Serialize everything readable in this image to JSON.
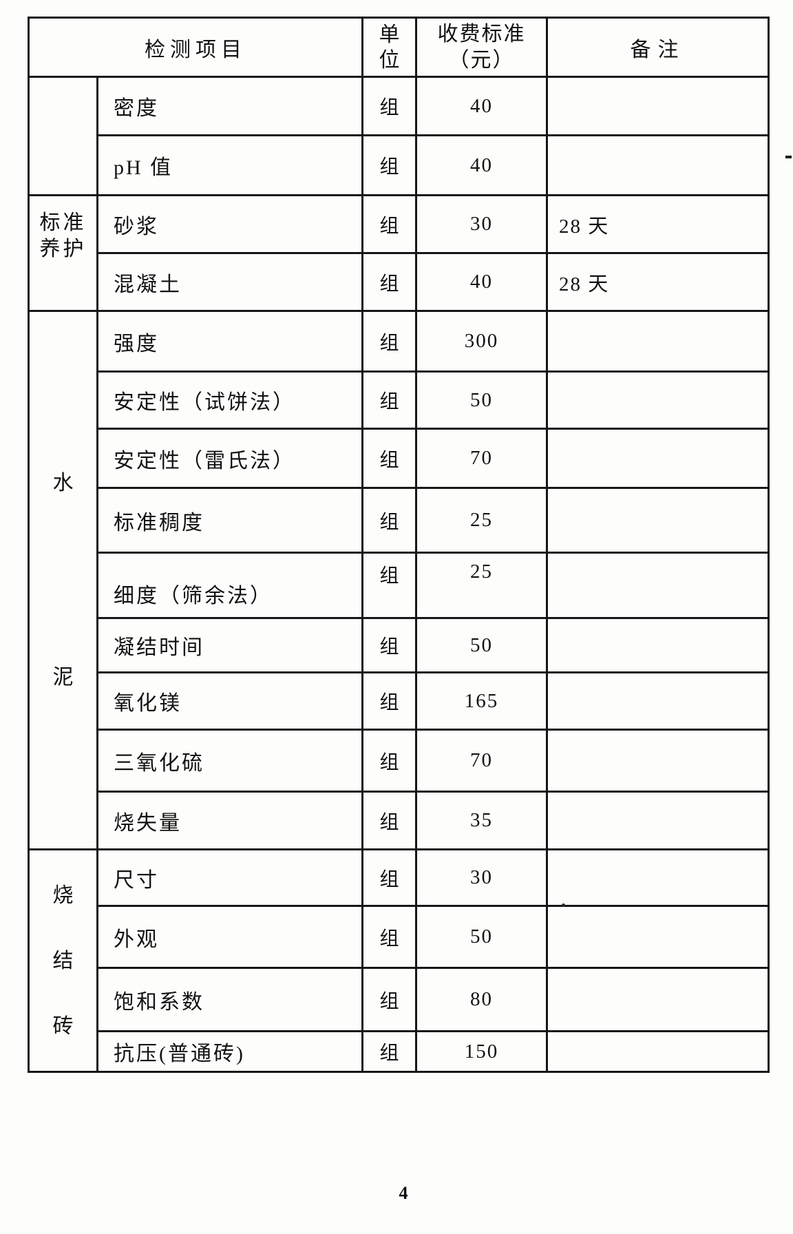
{
  "page": {
    "number": "4"
  },
  "table": {
    "header": {
      "item": "检测项目",
      "unit": "单\n位",
      "fee": "收费标准\n（元）",
      "remark": "备注"
    },
    "groups": [
      {
        "label": "",
        "rows": 2
      },
      {
        "label": "标准\n养护",
        "rows": 2
      },
      {
        "label": "水\n泥",
        "rows": 9
      },
      {
        "label": "烧\n结\n砖",
        "rows": 4
      }
    ],
    "rows": [
      {
        "item": "密度",
        "unit": "组",
        "fee": "40",
        "remark": ""
      },
      {
        "item": "pH 值",
        "unit": "组",
        "fee": "40",
        "remark": ""
      },
      {
        "item": "砂浆",
        "unit": "组",
        "fee": "30",
        "remark": "28 天"
      },
      {
        "item": "混凝土",
        "unit": "组",
        "fee": "40",
        "remark": "28 天"
      },
      {
        "item": "强度",
        "unit": "组",
        "fee": "300",
        "remark": ""
      },
      {
        "item": "安定性（试饼法）",
        "unit": "组",
        "fee": "50",
        "remark": ""
      },
      {
        "item": "安定性（雷氏法）",
        "unit": "组",
        "fee": "70",
        "remark": ""
      },
      {
        "item": "标准稠度",
        "unit": "组",
        "fee": "25",
        "remark": ""
      },
      {
        "item": "细度（筛余法）",
        "unit": "组",
        "fee": "25",
        "remark": "",
        "valign": "split"
      },
      {
        "item": "凝结时间",
        "unit": "组",
        "fee": "50",
        "remark": ""
      },
      {
        "item": "氧化镁",
        "unit": "组",
        "fee": "165",
        "remark": ""
      },
      {
        "item": "三氧化硫",
        "unit": "组",
        "fee": "70",
        "remark": ""
      },
      {
        "item": "烧失量",
        "unit": "组",
        "fee": "35",
        "remark": ""
      },
      {
        "item": "尺寸",
        "unit": "组",
        "fee": "30",
        "remark": ""
      },
      {
        "item": "外观",
        "unit": "组",
        "fee": "50",
        "remark": ""
      },
      {
        "item": "饱和系数",
        "unit": "组",
        "fee": "80",
        "remark": ""
      },
      {
        "item": "抗压(普通砖)",
        "unit": "组",
        "fee": "150",
        "remark": ""
      }
    ]
  }
}
